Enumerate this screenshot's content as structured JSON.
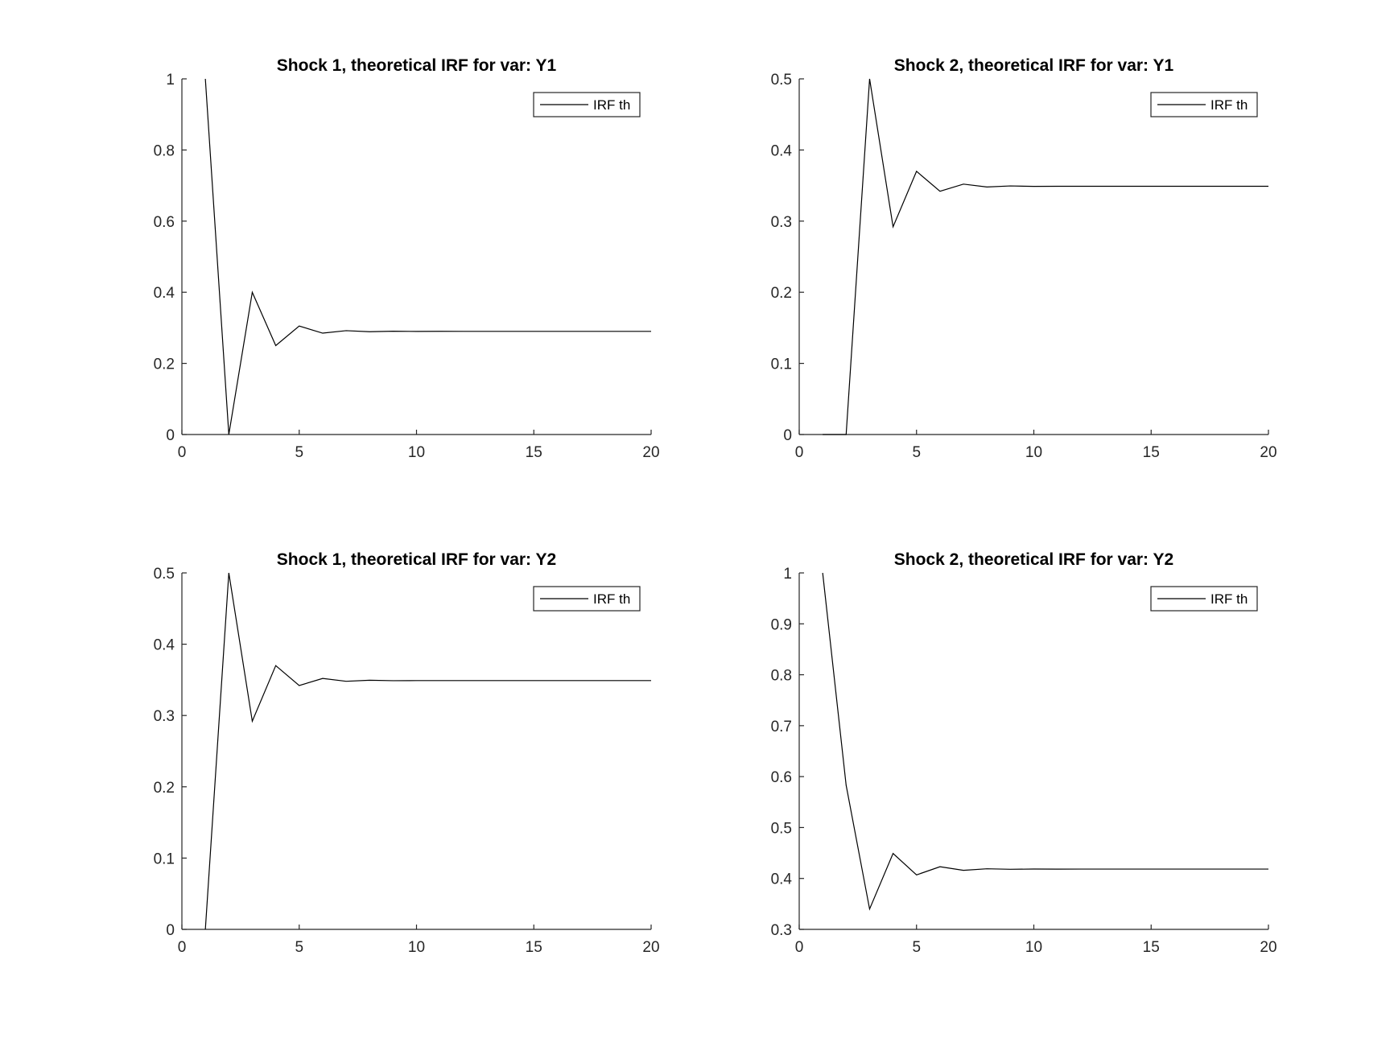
{
  "figure": {
    "background": "#ffffff",
    "axis_color": "#262626",
    "line_color": "#000000"
  },
  "chart_data": [
    {
      "type": "line",
      "title": "Shock 1, theoretical IRF for var: Y1",
      "xlabel": "",
      "ylabel": "",
      "xlim": [
        0,
        20
      ],
      "ylim": [
        0,
        1
      ],
      "xticks": [
        0,
        5,
        10,
        15,
        20
      ],
      "yticks": [
        0,
        0.2,
        0.4,
        0.6,
        0.8,
        1
      ],
      "grid": false,
      "legend_position": "top-right",
      "series": [
        {
          "name": "IRF th",
          "x": [
            1,
            2,
            3,
            4,
            5,
            6,
            7,
            8,
            9,
            10,
            11,
            12,
            13,
            14,
            15,
            16,
            17,
            18,
            19,
            20
          ],
          "y": [
            1,
            0,
            0.4,
            0.25,
            0.305,
            0.285,
            0.292,
            0.289,
            0.2905,
            0.2898,
            0.2901,
            0.29,
            0.29,
            0.29,
            0.29,
            0.29,
            0.29,
            0.29,
            0.29,
            0.29
          ]
        }
      ]
    },
    {
      "type": "line",
      "title": "Shock 2, theoretical IRF for var: Y1",
      "xlabel": "",
      "ylabel": "",
      "xlim": [
        0,
        20
      ],
      "ylim": [
        0,
        0.5
      ],
      "xticks": [
        0,
        5,
        10,
        15,
        20
      ],
      "yticks": [
        0,
        0.1,
        0.2,
        0.3,
        0.4,
        0.5
      ],
      "grid": false,
      "legend_position": "top-right",
      "series": [
        {
          "name": "IRF th",
          "x": [
            1,
            2,
            3,
            4,
            5,
            6,
            7,
            8,
            9,
            10,
            11,
            12,
            13,
            14,
            15,
            16,
            17,
            18,
            19,
            20
          ],
          "y": [
            0,
            0,
            0.5,
            0.292,
            0.37,
            0.342,
            0.352,
            0.348,
            0.3495,
            0.3488,
            0.349,
            0.349,
            0.349,
            0.349,
            0.349,
            0.349,
            0.349,
            0.349,
            0.349,
            0.349
          ]
        }
      ]
    },
    {
      "type": "line",
      "title": "Shock 1, theoretical IRF for var: Y2",
      "xlabel": "",
      "ylabel": "",
      "xlim": [
        0,
        20
      ],
      "ylim": [
        0,
        0.5
      ],
      "xticks": [
        0,
        5,
        10,
        15,
        20
      ],
      "yticks": [
        0,
        0.1,
        0.2,
        0.3,
        0.4,
        0.5
      ],
      "grid": false,
      "legend_position": "top-right",
      "series": [
        {
          "name": "IRF th",
          "x": [
            1,
            2,
            3,
            4,
            5,
            6,
            7,
            8,
            9,
            10,
            11,
            12,
            13,
            14,
            15,
            16,
            17,
            18,
            19,
            20
          ],
          "y": [
            0,
            0.5,
            0.292,
            0.37,
            0.342,
            0.352,
            0.348,
            0.3495,
            0.3488,
            0.349,
            0.349,
            0.349,
            0.349,
            0.349,
            0.349,
            0.349,
            0.349,
            0.349,
            0.349,
            0.349
          ]
        }
      ]
    },
    {
      "type": "line",
      "title": "Shock 2, theoretical IRF for var: Y2",
      "xlabel": "",
      "ylabel": "",
      "xlim": [
        0,
        20
      ],
      "ylim": [
        0.3,
        1
      ],
      "xticks": [
        0,
        5,
        10,
        15,
        20
      ],
      "yticks": [
        0.3,
        0.4,
        0.5,
        0.6,
        0.7,
        0.8,
        0.9,
        1
      ],
      "grid": false,
      "legend_position": "top-right",
      "series": [
        {
          "name": "IRF th",
          "x": [
            1,
            2,
            3,
            4,
            5,
            6,
            7,
            8,
            9,
            10,
            11,
            12,
            13,
            14,
            15,
            16,
            17,
            18,
            19,
            20
          ],
          "y": [
            1,
            0.583,
            0.34,
            0.449,
            0.407,
            0.423,
            0.416,
            0.419,
            0.418,
            0.4185,
            0.4183,
            0.4184,
            0.4184,
            0.4184,
            0.4184,
            0.4184,
            0.4184,
            0.4184,
            0.4184,
            0.4184
          ]
        }
      ]
    }
  ]
}
